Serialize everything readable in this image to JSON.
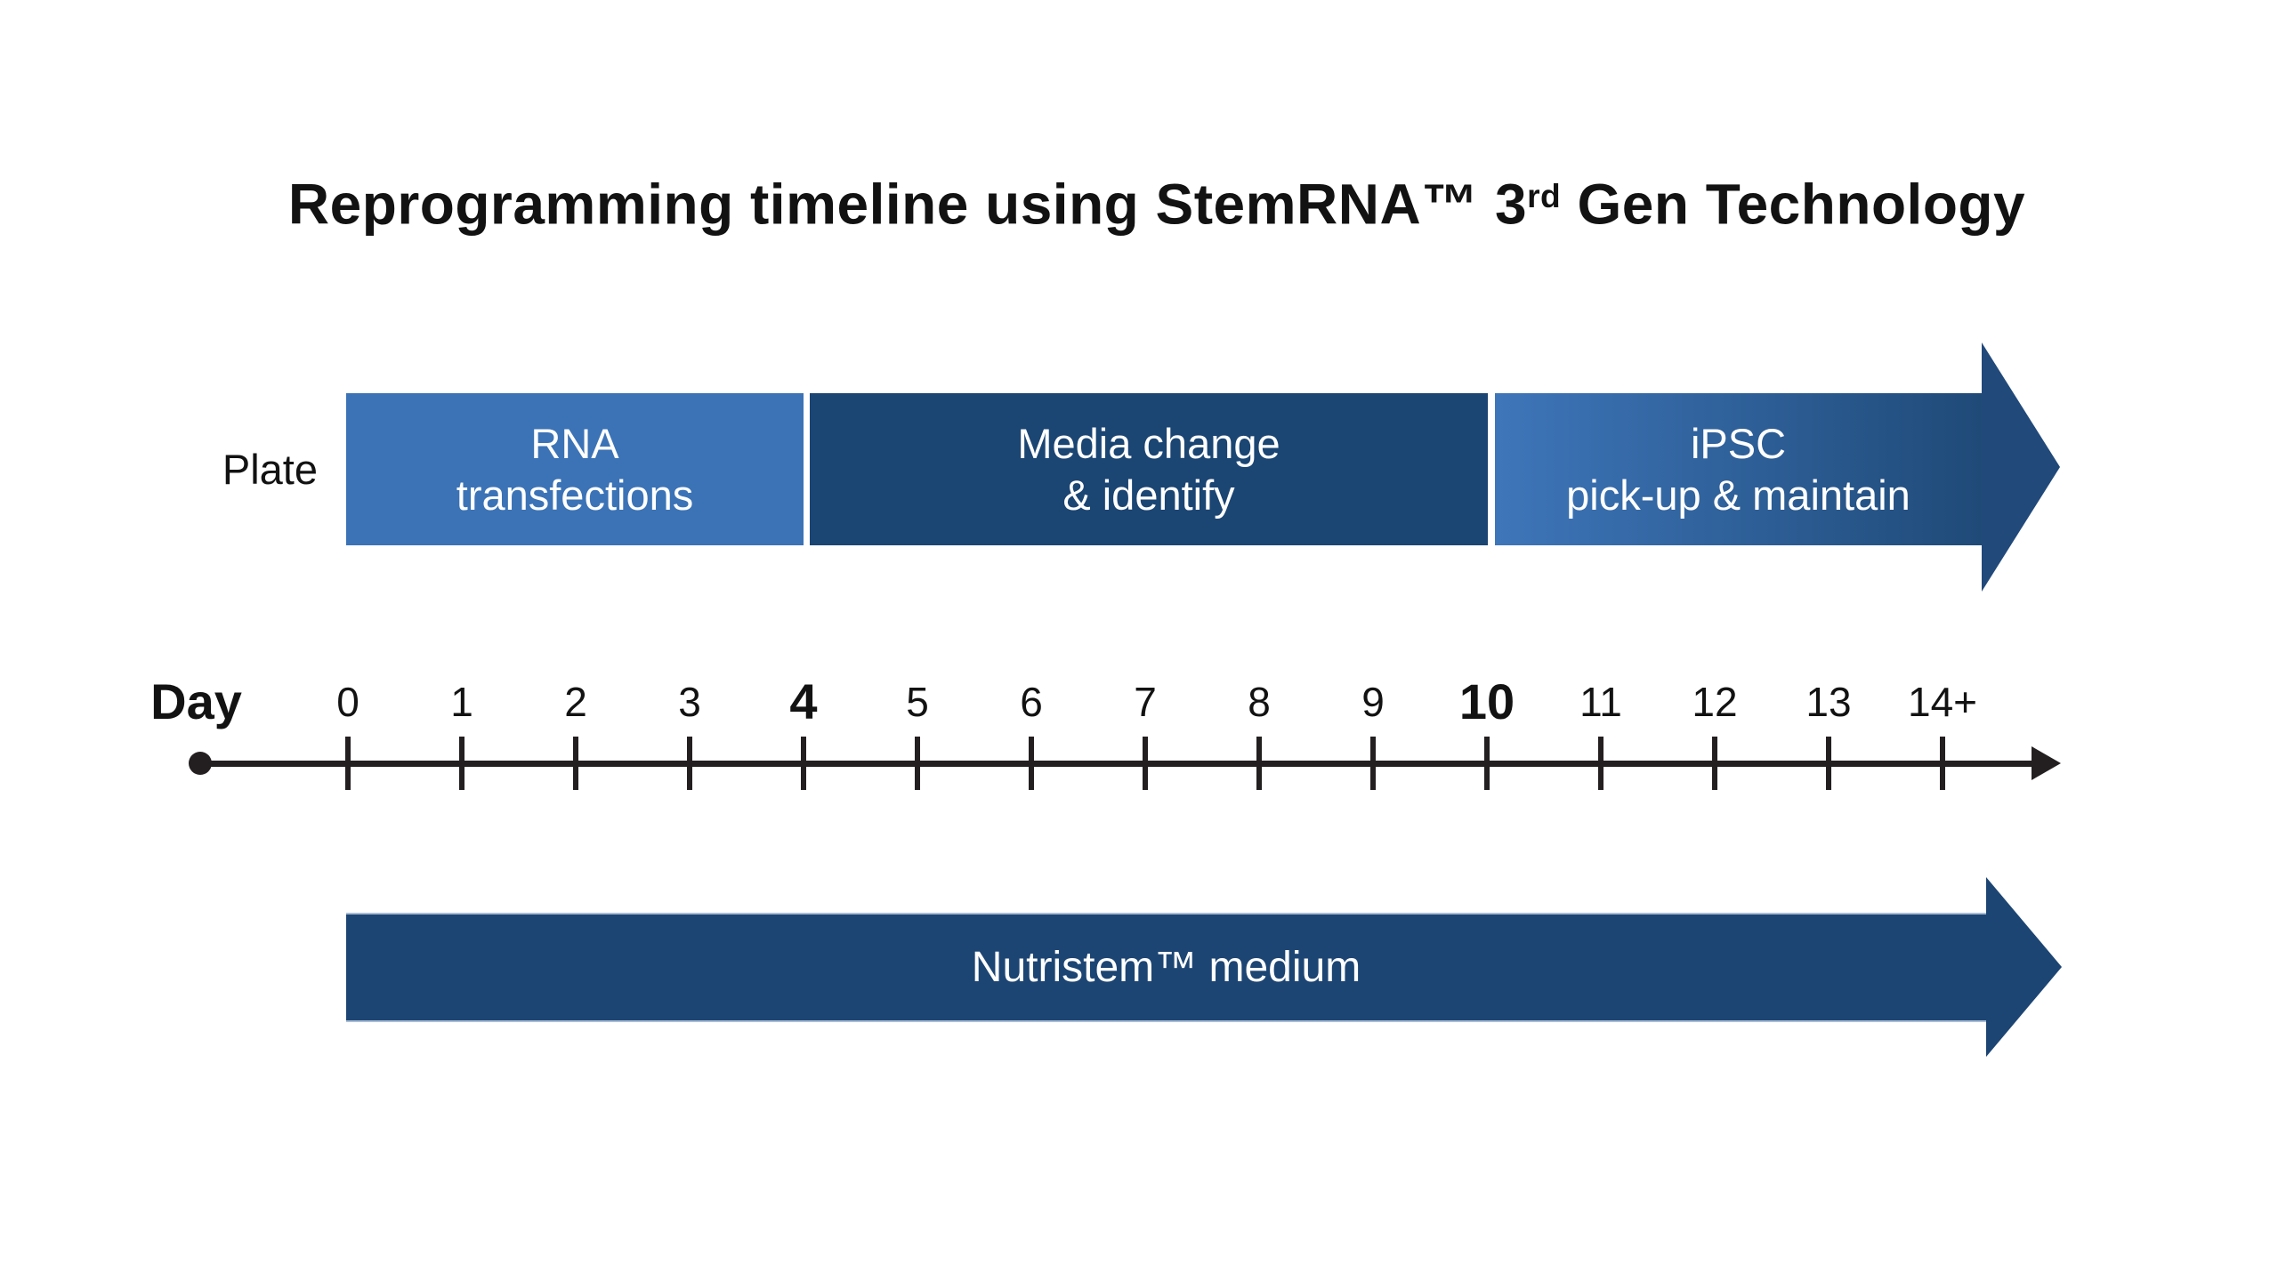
{
  "title": {
    "text_before_sup": "Reprogramming timeline using StemRNA™ 3",
    "sup": "rd",
    "text_after_sup": " Gen Technology"
  },
  "plate": {
    "label": "Plate",
    "segments": [
      {
        "id": "rna-transfections",
        "line1": "RNA",
        "line2": "transfections",
        "color": "#3B73B6",
        "day_span": "0–4"
      },
      {
        "id": "media-change-identify",
        "line1": "Media change",
        "line2": "& identify",
        "color": "#1B4573",
        "day_span": "4–10"
      },
      {
        "id": "ipsc-pickup-maintain",
        "line1": "iPSC",
        "line2": "pick-up & maintain",
        "color_start": "#3E76BA",
        "color_end": "#1F4A78",
        "arrow_color": "#21497A",
        "day_span": "10–14+"
      }
    ]
  },
  "timeline": {
    "label": "Day",
    "days": [
      "0",
      "1",
      "2",
      "3",
      "4",
      "5",
      "6",
      "7",
      "8",
      "9",
      "10",
      "11",
      "12",
      "13",
      "14+"
    ],
    "bold_days": [
      "4",
      "10"
    ],
    "axis_color": "#231F20"
  },
  "medium": {
    "label": "Nutristem™ medium",
    "color": "#1C4573",
    "day_span": "0–14+"
  },
  "background": "#FFFFFF",
  "text_colors": {
    "heading": "#121212",
    "bar_text": "#FFFFFF"
  }
}
